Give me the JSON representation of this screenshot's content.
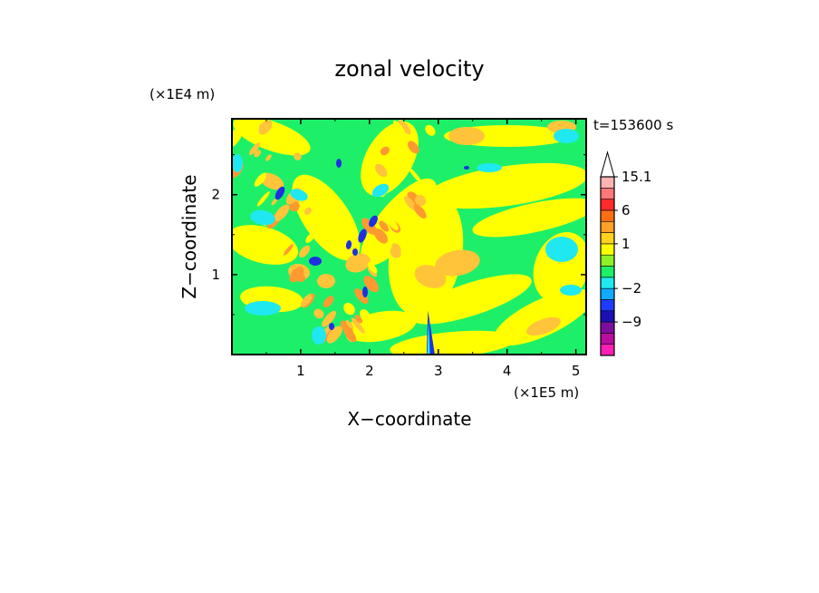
{
  "chart_data": {
    "type": "heatmap",
    "title": "zonal velocity",
    "xlabel": "X−coordinate",
    "ylabel": "Z−coordinate",
    "x_unit": "(×1E5 m)",
    "y_unit": "(×1E4 m)",
    "time_label": "t=153600 s",
    "xlim": [
      0,
      5.15
    ],
    "ylim": [
      0,
      2.95
    ],
    "x_ticks": [
      "1",
      "2",
      "3",
      "4",
      "5"
    ],
    "x_tick_values": [
      1,
      2,
      3,
      4,
      5
    ],
    "y_ticks": [
      "1",
      "2"
    ],
    "y_tick_values": [
      1,
      2
    ],
    "grid": false,
    "colorbar": {
      "position": "right",
      "labels": [
        {
          "text": "15.1",
          "value": 15.1
        },
        {
          "text": "6",
          "value": 6
        },
        {
          "text": "1",
          "value": 1
        },
        {
          "text": "−2",
          "value": -2
        },
        {
          "text": "−9",
          "value": -9
        }
      ],
      "levels": [
        {
          "value": -14,
          "color": "#ff1fb4"
        },
        {
          "value": -11,
          "color": "#b80d9e"
        },
        {
          "value": -9,
          "color": "#7c0e9e"
        },
        {
          "value": -6,
          "color": "#1a10b4"
        },
        {
          "value": -3,
          "color": "#1e3cff"
        },
        {
          "value": -2,
          "color": "#10aaff"
        },
        {
          "value": -1,
          "color": "#20e8f0"
        },
        {
          "value": 0,
          "color": "#1df068"
        },
        {
          "value": 0.5,
          "color": "#8ef026"
        },
        {
          "value": 1,
          "color": "#ffff00"
        },
        {
          "value": 2,
          "color": "#ffd21e"
        },
        {
          "value": 3,
          "color": "#ffa028"
        },
        {
          "value": 6,
          "color": "#ff6e14"
        },
        {
          "value": 9,
          "color": "#ff2a2a"
        },
        {
          "value": 12,
          "color": "#ff7878"
        },
        {
          "value": 15.1,
          "color": "#ffb4b4"
        }
      ]
    }
  },
  "colors": {
    "green": "#1df068",
    "yellow": "#ffff00",
    "cyan": "#20e8f0",
    "orange": "#ffc43a",
    "deep_orange": "#ff9a30",
    "blue": "#2030e0",
    "axis": "#000000",
    "background": "#ffffff"
  }
}
